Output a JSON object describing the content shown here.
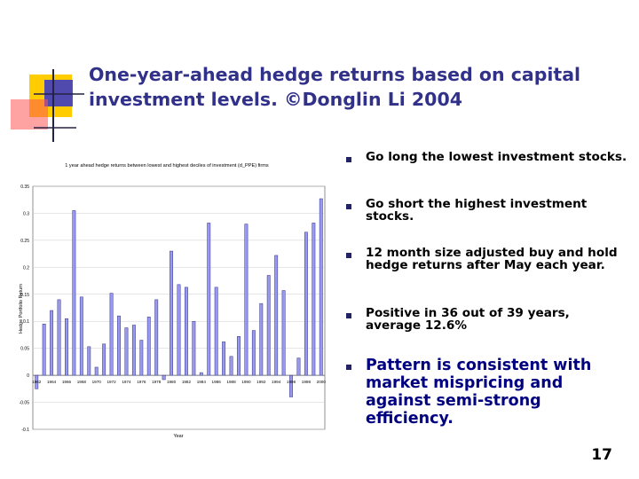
{
  "slide": {
    "title_lines": [
      "One-year-ahead hedge returns based on capital",
      "investment levels. ©Donglin Li 2004"
    ],
    "page_number": "17",
    "colors": {
      "title": "#31318a",
      "deco_yellow": "#ffcc00",
      "deco_blue": "#3333cc",
      "deco_red": "#ff4444",
      "bar_fill": "#9999ee",
      "bar_stroke": "#333388"
    }
  },
  "bullets": [
    {
      "text": "Go long the lowest investment stocks."
    },
    {
      "text": "Go short the highest investment stocks."
    },
    {
      "text": "12 month size adjusted buy and hold hedge returns after May each year."
    },
    {
      "text": "Positive in 36 out of 39 years, average 12.6%"
    },
    {
      "text": "Pattern is consistent with market mispricing and against semi-strong efficiency."
    }
  ],
  "chart_data": {
    "type": "bar",
    "title": "1 year ahead hedge returns between lowest and highest deciles of investment (d_PPE) firms",
    "xlabel": "Year",
    "ylabel": "Hedge Portfolio Return",
    "ylim": [
      -0.1,
      0.35
    ],
    "yticks": [
      "-0.1",
      "-0.05",
      "0",
      "0.05",
      "0.1",
      "0.15",
      "0.2",
      "0.25",
      "0.3",
      "0.35"
    ],
    "xtick_labels": [
      "1962",
      "1964",
      "1966",
      "1968",
      "1970",
      "1972",
      "1974",
      "1976",
      "1978",
      "1980",
      "1982",
      "1984",
      "1986",
      "1988",
      "1990",
      "1992",
      "1994",
      "1996",
      "1998",
      "2000"
    ],
    "categories": [
      "1962",
      "1963",
      "1964",
      "1965",
      "1966",
      "1967",
      "1968",
      "1969",
      "1970",
      "1971",
      "1972",
      "1973",
      "1974",
      "1975",
      "1976",
      "1977",
      "1978",
      "1979",
      "1980",
      "1981",
      "1982",
      "1983",
      "1984",
      "1985",
      "1986",
      "1987",
      "1988",
      "1989",
      "1990",
      "1991",
      "1992",
      "1993",
      "1994",
      "1995",
      "1996",
      "1997",
      "1998",
      "1999",
      "2000"
    ],
    "values": [
      -0.025,
      0.095,
      0.12,
      0.14,
      0.105,
      0.305,
      0.145,
      0.053,
      0.015,
      0.058,
      0.152,
      0.11,
      0.088,
      0.093,
      0.065,
      0.108,
      0.14,
      -0.008,
      0.23,
      0.168,
      0.163,
      0.1,
      0.005,
      0.282,
      0.163,
      0.062,
      0.035,
      0.072,
      0.28,
      0.083,
      0.133,
      0.185,
      0.222,
      0.157,
      -0.04,
      0.032,
      0.265,
      0.282,
      0.327
    ]
  }
}
